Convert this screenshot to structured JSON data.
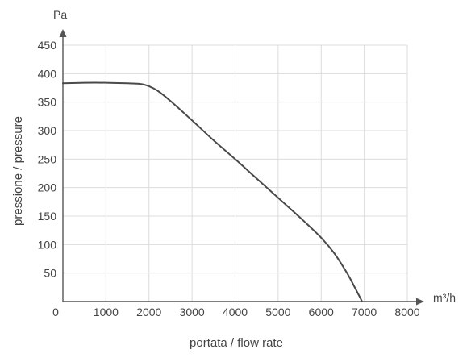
{
  "chart_data": {
    "type": "line",
    "title": "",
    "xlabel": "portata / flow rate",
    "ylabel": "pressione / pressure",
    "x_unit": "m³/h",
    "y_unit": "Pa",
    "xlim": [
      0,
      8000
    ],
    "ylim": [
      0,
      450
    ],
    "x_ticks": [
      "0",
      "1000",
      "2000",
      "3000",
      "4000",
      "5000",
      "6000",
      "7000",
      "8000"
    ],
    "y_ticks": [
      "50",
      "100",
      "150",
      "200",
      "250",
      "300",
      "350",
      "400",
      "450"
    ],
    "grid": true,
    "legend": "none",
    "colors": {
      "curve": "#4a4a4a",
      "grid": "#dcdcdc",
      "axis": "#555555",
      "text": "#444444"
    },
    "series": [
      {
        "x": [
          0,
          500,
          1000,
          1500,
          1800,
          2000,
          2200,
          2500,
          3000,
          3500,
          4000,
          4500,
          5000,
          5500,
          6000,
          6300,
          6600,
          6800,
          6950
        ],
        "y": [
          383,
          384,
          384,
          383,
          382,
          378,
          370,
          352,
          318,
          283,
          250,
          216,
          182,
          148,
          112,
          85,
          50,
          22,
          0
        ]
      }
    ]
  }
}
